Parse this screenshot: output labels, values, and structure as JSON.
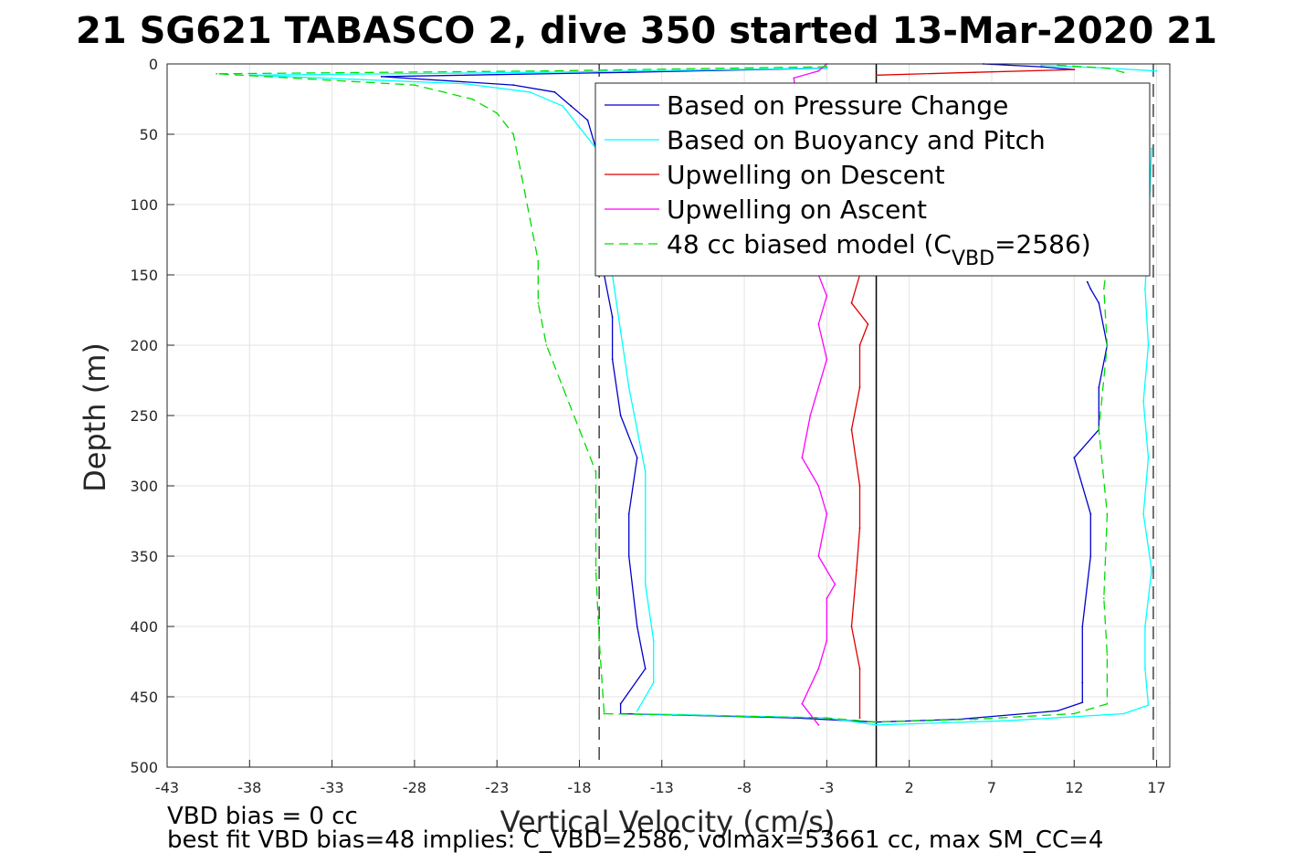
{
  "chart_data": {
    "type": "line",
    "title": "21 SG621 TABASCO 2, dive 350 started 13-Mar-2020 21",
    "xlabel": "Vertical Velocity (cm/s)",
    "ylabel": "Depth (m)",
    "xlim": [
      -43,
      17.8
    ],
    "ylim": [
      0,
      500
    ],
    "y_reversed": true,
    "grid": true,
    "x_ticks": [
      -43,
      -38,
      -33,
      -28,
      -23,
      -18,
      -13,
      -8,
      -3,
      2,
      7,
      12,
      17
    ],
    "y_ticks": [
      0,
      50,
      100,
      150,
      200,
      250,
      300,
      350,
      400,
      450,
      500
    ],
    "legend": {
      "placement": "top-right",
      "inside": true
    },
    "reference_lines": [
      {
        "kind": "vertical-solid",
        "x": 0
      },
      {
        "kind": "vertical-dashed",
        "x": -16.8
      },
      {
        "kind": "vertical-dashed",
        "x": 16.8
      }
    ],
    "series": [
      {
        "name": "Based on Pressure Change",
        "color": "#0000cc",
        "style": "solid",
        "segments": [
          {
            "x": [
              -3,
              -15,
              -30,
              -22,
              -19.5,
              -18.5,
              -17.5,
              -17,
              -17,
              -16.5,
              -16.5,
              -16,
              -16,
              -15.5,
              -14.5,
              -15,
              -15,
              -14.5,
              -14,
              -15.5,
              -15.5
            ],
            "y": [
              3,
              6,
              9,
              15,
              20,
              30,
              40,
              60,
              90,
              120,
              150,
              180,
              210,
              250,
              280,
              320,
              350,
              400,
              430,
              455,
              462
            ]
          },
          {
            "x": [
              -15.5,
              -5,
              0,
              5,
              11,
              12.5,
              12.5,
              12.5,
              13,
              13,
              12,
              13.5,
              13.5,
              14,
              13.5,
              13,
              12.8
            ],
            "y": [
              462,
              465,
              468,
              466,
              460,
              454,
              440,
              400,
              350,
              320,
              280,
              260,
              230,
              200,
              170,
              160,
              155
            ]
          },
          {
            "x": [
              6.5,
              10,
              12
            ],
            "y": [
              0,
              2,
              4
            ]
          }
        ]
      },
      {
        "name": "Based on Buoyancy and Pitch",
        "color": "#00ffff",
        "style": "solid",
        "segments": [
          {
            "x": [
              -3,
              -20,
              -38,
              -25,
              -21,
              -19,
              -18,
              -17,
              -16.5,
              -16.5,
              -16,
              -15.5,
              -15,
              -14.5,
              -14,
              -14,
              -14,
              -13.5,
              -13.5,
              -14.5
            ],
            "y": [
              3,
              6,
              8,
              14,
              20,
              30,
              45,
              60,
              90,
              120,
              150,
              190,
              230,
              260,
              290,
              330,
              370,
              410,
              440,
              460
            ]
          },
          {
            "x": [
              -14.5,
              -3,
              0,
              8,
              15,
              16.5,
              16.3,
              16.3,
              16.7,
              16.2,
              16.5,
              16.2,
              16.5,
              16.3,
              16.5,
              16.7
            ],
            "y": [
              462,
              465,
              470,
              467,
              462,
              456,
              430,
              400,
              360,
              320,
              280,
              240,
              200,
              160,
              120,
              60
            ]
          },
          {
            "x": [
              10,
              14,
              17
            ],
            "y": [
              1,
              3,
              5
            ]
          }
        ]
      },
      {
        "name": "Upwelling on Descent",
        "color": "#dd0000",
        "style": "solid",
        "segments": [
          {
            "x": [
              -1,
              -1.5,
              -0.5,
              -1,
              -1,
              -1.5,
              -1,
              -1,
              -1.2,
              -1.5,
              -1,
              -1
            ],
            "y": [
              150,
              170,
              185,
              200,
              230,
              260,
              300,
              330,
              360,
              400,
              430,
              465
            ]
          },
          {
            "x": [
              0,
              6,
              12
            ],
            "y": [
              8,
              6,
              4
            ]
          }
        ]
      },
      {
        "name": "Upwelling on Ascent",
        "color": "#ff00ff",
        "style": "solid",
        "segments": [
          {
            "x": [
              -3,
              -3.5,
              -5,
              -3.5,
              -3,
              -3.5,
              -3,
              -4,
              -4.5,
              -3.5,
              -3,
              -3.5,
              -2.5,
              -3,
              -3,
              -3.5,
              -4.5,
              -3.5
            ],
            "y": [
              0,
              5,
              10,
              150,
              165,
              185,
              210,
              250,
              280,
              300,
              320,
              350,
              370,
              380,
              410,
              430,
              455,
              470
            ]
          }
        ]
      },
      {
        "name": "48 cc biased model (C",
        "name_sub": "VBD",
        "name_tail": "=2586)",
        "color": "#00dd00",
        "style": "dashed",
        "segments": [
          {
            "x": [
              -3,
              -20,
              -40,
              -28,
              -24.5,
              -23,
              -22,
              -21.5,
              -21,
              -20.5,
              -20.5,
              -20,
              -19,
              -18,
              -17,
              -17,
              -17,
              -16.8,
              -16.5
            ],
            "y": [
              2,
              5,
              7,
              15,
              25,
              35,
              50,
              80,
              110,
              140,
              170,
              200,
              230,
              260,
              290,
              320,
              360,
              410,
              462
            ]
          },
          {
            "x": [
              -16.5,
              -3,
              0,
              6,
              12,
              14,
              14,
              13.8,
              14,
              13.5,
              14,
              13.8,
              14
            ],
            "y": [
              462,
              465,
              468,
              466,
              462,
              455,
              420,
              380,
              320,
              260,
              200,
              160,
              140
            ]
          },
          {
            "x": [
              11,
              14,
              15
            ],
            "y": [
              1,
              3,
              6
            ]
          }
        ]
      }
    ]
  },
  "footer": {
    "line1": "VBD bias = 0 cc",
    "line2": "best fit VBD bias=48 implies: C_VBD=2586, volmax=53661 cc, max SM_CC=4"
  }
}
